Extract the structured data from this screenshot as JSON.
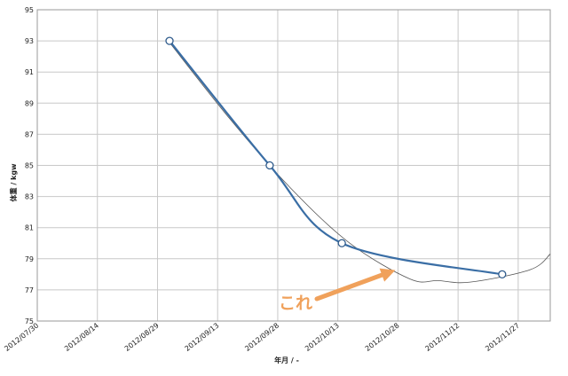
{
  "chart_data": {
    "type": "line",
    "x_type": "date",
    "xlabel": "年月 / -",
    "ylabel": "体重 / kgw",
    "xlim": [
      "2012-07-30",
      "2012-12-05"
    ],
    "ylim": [
      75,
      95
    ],
    "x_ticks": [
      "2012/07/30",
      "2012/08/14",
      "2012/08/29",
      "2012/09/13",
      "2012/09/28",
      "2012/10/13",
      "2012/10/28",
      "2012/11/12",
      "2012/11/27"
    ],
    "y_ticks": [
      75,
      77,
      79,
      81,
      83,
      85,
      87,
      89,
      91,
      93,
      95
    ],
    "grid": true,
    "legend": "none",
    "series": [
      {
        "style": "smoothed line with hollow circle markers",
        "color": "#3a6ea5",
        "points": [
          {
            "x": "2012-09-01",
            "y": 93
          },
          {
            "x": "2012-09-26",
            "y": 85
          },
          {
            "x": "2012-10-14",
            "y": 80
          },
          {
            "x": "2012-11-23",
            "y": 78
          }
        ]
      },
      {
        "style": "thin trendline",
        "color": "#555555",
        "points": [
          {
            "x": "2012-09-01",
            "y": 92.9
          },
          {
            "x": "2012-09-16",
            "y": 88.0
          },
          {
            "x": "2012-10-01",
            "y": 83.6
          },
          {
            "x": "2012-10-16",
            "y": 80.0
          },
          {
            "x": "2012-10-31",
            "y": 77.7
          },
          {
            "x": "2012-11-07",
            "y": 77.6
          },
          {
            "x": "2012-11-15",
            "y": 77.5
          },
          {
            "x": "2012-11-30",
            "y": 78.3
          },
          {
            "x": "2012-12-05",
            "y": 79.3
          }
        ]
      }
    ],
    "annotations": [
      {
        "text": "これ",
        "color": "#f0a15b",
        "arrow_to": {
          "x": "2012-10-28",
          "y": 78.5
        }
      }
    ]
  }
}
